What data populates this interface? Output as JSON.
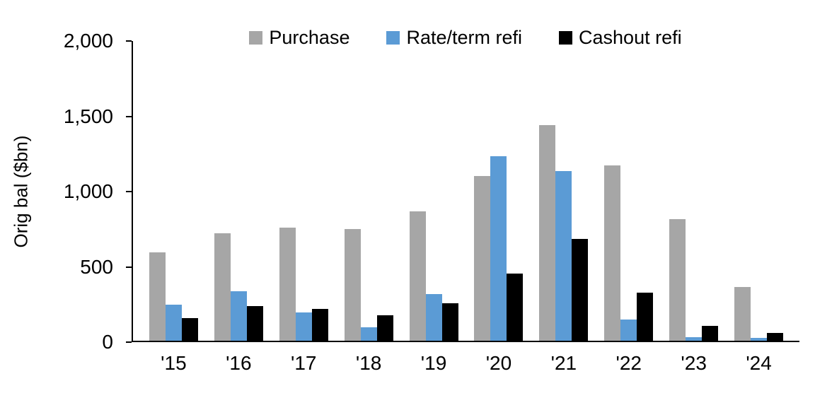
{
  "chart_data": {
    "type": "bar",
    "title": "",
    "xlabel": "",
    "ylabel": "Orig bal ($bn)",
    "ylim": [
      0,
      2000
    ],
    "grid": false,
    "legend_position": "top",
    "y_ticks": [
      {
        "value": 0,
        "label": "0"
      },
      {
        "value": 500,
        "label": "500"
      },
      {
        "value": 1000,
        "label": "1,000"
      },
      {
        "value": 1500,
        "label": "1,500"
      },
      {
        "value": 2000,
        "label": "2,000"
      }
    ],
    "categories": [
      "'15",
      "'16",
      "'17",
      "'18",
      "'19",
      "'20",
      "'21",
      "'22",
      "'23",
      "'24"
    ],
    "series": [
      {
        "name": "Purchase",
        "color": "#a6a6a6",
        "values": [
          590,
          715,
          755,
          745,
          865,
          1100,
          1440,
          1170,
          810,
          360
        ]
      },
      {
        "name": "Rate/term refi",
        "color": "#5b9bd5",
        "values": [
          240,
          330,
          190,
          90,
          310,
          1230,
          1130,
          140,
          25,
          20
        ]
      },
      {
        "name": "Cashout refi",
        "color": "#000000",
        "values": [
          150,
          230,
          210,
          170,
          250,
          450,
          680,
          320,
          100,
          50
        ]
      }
    ]
  }
}
